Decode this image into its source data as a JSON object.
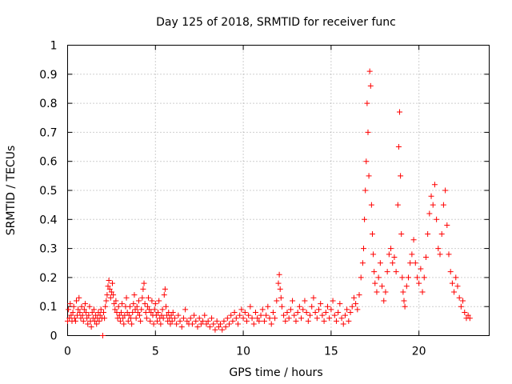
{
  "chart_data": {
    "type": "scatter",
    "title": "Day 125 of 2018, SRMTID for receiver func",
    "xlabel": "GPS time / hours",
    "ylabel": "SRMTID / TECUs",
    "xlim": [
      0,
      24
    ],
    "ylim": [
      0,
      1
    ],
    "xticks": [
      0,
      5,
      10,
      15,
      20
    ],
    "xtick_labels": [
      "0",
      "5",
      "10",
      "15",
      "20"
    ],
    "yticks": [
      0,
      0.1,
      0.2,
      0.3,
      0.4,
      0.5,
      0.6,
      0.7,
      0.8,
      0.9,
      1
    ],
    "ytick_labels": [
      "0",
      "0.1",
      "0.2",
      "0.3",
      "0.4",
      "0.5",
      "0.6",
      "0.7",
      "0.8",
      "0.9",
      "1"
    ],
    "grid": true,
    "marker": "plus",
    "color": "#ff0000",
    "series": [
      {
        "name": "SRMTID",
        "points": [
          [
            0.0,
            0.05
          ],
          [
            0.05,
            0.09
          ],
          [
            0.1,
            0.06
          ],
          [
            0.15,
            0.11
          ],
          [
            0.2,
            0.07
          ],
          [
            0.25,
            0.05
          ],
          [
            0.3,
            0.08
          ],
          [
            0.35,
            0.1
          ],
          [
            0.4,
            0.06
          ],
          [
            0.45,
            0.05
          ],
          [
            0.5,
            0.12
          ],
          [
            0.55,
            0.07
          ],
          [
            0.6,
            0.09
          ],
          [
            0.65,
            0.13
          ],
          [
            0.7,
            0.08
          ],
          [
            0.75,
            0.06
          ],
          [
            0.8,
            0.1
          ],
          [
            0.85,
            0.07
          ],
          [
            0.9,
            0.05
          ],
          [
            0.95,
            0.09
          ],
          [
            1.0,
            0.11
          ],
          [
            1.05,
            0.08
          ],
          [
            1.1,
            0.06
          ],
          [
            1.15,
            0.04
          ],
          [
            1.2,
            0.07
          ],
          [
            1.25,
            0.1
          ],
          [
            1.3,
            0.05
          ],
          [
            1.35,
            0.03
          ],
          [
            1.4,
            0.08
          ],
          [
            1.45,
            0.06
          ],
          [
            1.5,
            0.09
          ],
          [
            1.55,
            0.05
          ],
          [
            1.6,
            0.07
          ],
          [
            1.65,
            0.04
          ],
          [
            1.7,
            0.06
          ],
          [
            1.75,
            0.08
          ],
          [
            1.8,
            0.05
          ],
          [
            1.85,
            0.07
          ],
          [
            1.9,
            0.09
          ],
          [
            1.95,
            0.06
          ],
          [
            2.0,
            0.0
          ],
          [
            2.05,
            0.08
          ],
          [
            2.1,
            0.06
          ],
          [
            2.15,
            0.1
          ],
          [
            2.2,
            0.12
          ],
          [
            2.25,
            0.14
          ],
          [
            2.3,
            0.17
          ],
          [
            2.35,
            0.19
          ],
          [
            2.4,
            0.16
          ],
          [
            2.45,
            0.13
          ],
          [
            2.5,
            0.15
          ],
          [
            2.55,
            0.18
          ],
          [
            2.6,
            0.14
          ],
          [
            2.65,
            0.11
          ],
          [
            2.7,
            0.09
          ],
          [
            2.75,
            0.12
          ],
          [
            2.8,
            0.08
          ],
          [
            2.85,
            0.06
          ],
          [
            2.9,
            0.1
          ],
          [
            2.95,
            0.07
          ],
          [
            3.0,
            0.05
          ],
          [
            3.05,
            0.08
          ],
          [
            3.1,
            0.11
          ],
          [
            3.15,
            0.06
          ],
          [
            3.2,
            0.04
          ],
          [
            3.25,
            0.07
          ],
          [
            3.3,
            0.1
          ],
          [
            3.35,
            0.13
          ],
          [
            3.4,
            0.08
          ],
          [
            3.45,
            0.05
          ],
          [
            3.5,
            0.07
          ],
          [
            3.55,
            0.1
          ],
          [
            3.6,
            0.06
          ],
          [
            3.65,
            0.04
          ],
          [
            3.7,
            0.08
          ],
          [
            3.75,
            0.11
          ],
          [
            3.8,
            0.14
          ],
          [
            3.85,
            0.09
          ],
          [
            3.9,
            0.06
          ],
          [
            3.95,
            0.1
          ],
          [
            4.0,
            0.08
          ],
          [
            4.05,
            0.12
          ],
          [
            4.1,
            0.07
          ],
          [
            4.15,
            0.05
          ],
          [
            4.2,
            0.09
          ],
          [
            4.25,
            0.13
          ],
          [
            4.3,
            0.16
          ],
          [
            4.35,
            0.18
          ],
          [
            4.4,
            0.11
          ],
          [
            4.45,
            0.08
          ],
          [
            4.5,
            0.06
          ],
          [
            4.55,
            0.1
          ],
          [
            4.6,
            0.13
          ],
          [
            4.65,
            0.09
          ],
          [
            4.7,
            0.05
          ],
          [
            4.75,
            0.08
          ],
          [
            4.8,
            0.12
          ],
          [
            4.85,
            0.07
          ],
          [
            4.9,
            0.04
          ],
          [
            4.95,
            0.09
          ],
          [
            5.0,
            0.11
          ],
          [
            5.05,
            0.07
          ],
          [
            5.1,
            0.05
          ],
          [
            5.15,
            0.08
          ],
          [
            5.2,
            0.12
          ],
          [
            5.25,
            0.06
          ],
          [
            5.3,
            0.04
          ],
          [
            5.35,
            0.07
          ],
          [
            5.4,
            0.09
          ],
          [
            5.45,
            0.06
          ],
          [
            5.5,
            0.14
          ],
          [
            5.55,
            0.16
          ],
          [
            5.6,
            0.1
          ],
          [
            5.65,
            0.07
          ],
          [
            5.7,
            0.05
          ],
          [
            5.75,
            0.08
          ],
          [
            5.8,
            0.06
          ],
          [
            5.85,
            0.04
          ],
          [
            5.9,
            0.07
          ],
          [
            5.95,
            0.05
          ],
          [
            6.0,
            0.08
          ],
          [
            6.1,
            0.06
          ],
          [
            6.2,
            0.04
          ],
          [
            6.3,
            0.07
          ],
          [
            6.4,
            0.05
          ],
          [
            6.5,
            0.03
          ],
          [
            6.6,
            0.06
          ],
          [
            6.7,
            0.09
          ],
          [
            6.8,
            0.05
          ],
          [
            6.9,
            0.04
          ],
          [
            7.0,
            0.06
          ],
          [
            7.1,
            0.04
          ],
          [
            7.2,
            0.07
          ],
          [
            7.3,
            0.05
          ],
          [
            7.4,
            0.03
          ],
          [
            7.5,
            0.06
          ],
          [
            7.6,
            0.04
          ],
          [
            7.7,
            0.05
          ],
          [
            7.8,
            0.07
          ],
          [
            7.9,
            0.04
          ],
          [
            8.0,
            0.05
          ],
          [
            8.1,
            0.03
          ],
          [
            8.2,
            0.06
          ],
          [
            8.3,
            0.04
          ],
          [
            8.4,
            0.02
          ],
          [
            8.5,
            0.05
          ],
          [
            8.6,
            0.03
          ],
          [
            8.7,
            0.04
          ],
          [
            8.8,
            0.02
          ],
          [
            8.9,
            0.05
          ],
          [
            9.0,
            0.03
          ],
          [
            9.1,
            0.06
          ],
          [
            9.2,
            0.04
          ],
          [
            9.3,
            0.07
          ],
          [
            9.4,
            0.05
          ],
          [
            9.5,
            0.08
          ],
          [
            9.6,
            0.06
          ],
          [
            9.7,
            0.04
          ],
          [
            9.8,
            0.07
          ],
          [
            9.9,
            0.09
          ],
          [
            10.0,
            0.06
          ],
          [
            10.1,
            0.08
          ],
          [
            10.2,
            0.05
          ],
          [
            10.3,
            0.07
          ],
          [
            10.4,
            0.1
          ],
          [
            10.5,
            0.06
          ],
          [
            10.6,
            0.04
          ],
          [
            10.7,
            0.08
          ],
          [
            10.8,
            0.06
          ],
          [
            10.9,
            0.05
          ],
          [
            11.0,
            0.07
          ],
          [
            11.1,
            0.09
          ],
          [
            11.2,
            0.05
          ],
          [
            11.3,
            0.07
          ],
          [
            11.4,
            0.1
          ],
          [
            11.5,
            0.06
          ],
          [
            11.6,
            0.04
          ],
          [
            11.7,
            0.08
          ],
          [
            11.8,
            0.06
          ],
          [
            11.9,
            0.12
          ],
          [
            12.0,
            0.18
          ],
          [
            12.05,
            0.21
          ],
          [
            12.1,
            0.16
          ],
          [
            12.15,
            0.13
          ],
          [
            12.2,
            0.1
          ],
          [
            12.3,
            0.07
          ],
          [
            12.4,
            0.05
          ],
          [
            12.5,
            0.08
          ],
          [
            12.6,
            0.06
          ],
          [
            12.7,
            0.09
          ],
          [
            12.8,
            0.12
          ],
          [
            12.9,
            0.07
          ],
          [
            13.0,
            0.05
          ],
          [
            13.1,
            0.08
          ],
          [
            13.2,
            0.1
          ],
          [
            13.3,
            0.06
          ],
          [
            13.4,
            0.09
          ],
          [
            13.5,
            0.12
          ],
          [
            13.6,
            0.08
          ],
          [
            13.7,
            0.05
          ],
          [
            13.8,
            0.07
          ],
          [
            13.9,
            0.1
          ],
          [
            14.0,
            0.13
          ],
          [
            14.1,
            0.08
          ],
          [
            14.2,
            0.06
          ],
          [
            14.3,
            0.09
          ],
          [
            14.4,
            0.11
          ],
          [
            14.5,
            0.07
          ],
          [
            14.6,
            0.05
          ],
          [
            14.7,
            0.08
          ],
          [
            14.8,
            0.1
          ],
          [
            14.9,
            0.06
          ],
          [
            15.0,
            0.09
          ],
          [
            15.1,
            0.12
          ],
          [
            15.2,
            0.07
          ],
          [
            15.3,
            0.05
          ],
          [
            15.4,
            0.08
          ],
          [
            15.5,
            0.11
          ],
          [
            15.6,
            0.06
          ],
          [
            15.7,
            0.04
          ],
          [
            15.8,
            0.07
          ],
          [
            15.9,
            0.09
          ],
          [
            16.0,
            0.05
          ],
          [
            16.1,
            0.08
          ],
          [
            16.2,
            0.1
          ],
          [
            16.3,
            0.13
          ],
          [
            16.4,
            0.11
          ],
          [
            16.5,
            0.09
          ],
          [
            16.6,
            0.14
          ],
          [
            16.7,
            0.2
          ],
          [
            16.8,
            0.25
          ],
          [
            16.85,
            0.3
          ],
          [
            16.9,
            0.4
          ],
          [
            16.95,
            0.5
          ],
          [
            17.0,
            0.6
          ],
          [
            17.05,
            0.8
          ],
          [
            17.1,
            0.7
          ],
          [
            17.15,
            0.55
          ],
          [
            17.2,
            0.91
          ],
          [
            17.25,
            0.86
          ],
          [
            17.3,
            0.45
          ],
          [
            17.35,
            0.35
          ],
          [
            17.4,
            0.28
          ],
          [
            17.45,
            0.22
          ],
          [
            17.5,
            0.18
          ],
          [
            17.6,
            0.15
          ],
          [
            17.7,
            0.2
          ],
          [
            17.8,
            0.25
          ],
          [
            17.9,
            0.17
          ],
          [
            18.0,
            0.12
          ],
          [
            18.1,
            0.15
          ],
          [
            18.2,
            0.22
          ],
          [
            18.3,
            0.28
          ],
          [
            18.4,
            0.3
          ],
          [
            18.5,
            0.25
          ],
          [
            18.6,
            0.27
          ],
          [
            18.7,
            0.22
          ],
          [
            18.8,
            0.45
          ],
          [
            18.85,
            0.65
          ],
          [
            18.9,
            0.77
          ],
          [
            18.95,
            0.55
          ],
          [
            19.0,
            0.35
          ],
          [
            19.05,
            0.2
          ],
          [
            19.1,
            0.15
          ],
          [
            19.15,
            0.12
          ],
          [
            19.2,
            0.1
          ],
          [
            19.3,
            0.17
          ],
          [
            19.4,
            0.2
          ],
          [
            19.5,
            0.25
          ],
          [
            19.6,
            0.28
          ],
          [
            19.7,
            0.33
          ],
          [
            19.8,
            0.25
          ],
          [
            19.9,
            0.2
          ],
          [
            20.0,
            0.18
          ],
          [
            20.1,
            0.23
          ],
          [
            20.2,
            0.15
          ],
          [
            20.3,
            0.2
          ],
          [
            20.4,
            0.27
          ],
          [
            20.5,
            0.35
          ],
          [
            20.6,
            0.42
          ],
          [
            20.7,
            0.48
          ],
          [
            20.8,
            0.45
          ],
          [
            20.9,
            0.52
          ],
          [
            21.0,
            0.4
          ],
          [
            21.1,
            0.3
          ],
          [
            21.2,
            0.28
          ],
          [
            21.3,
            0.35
          ],
          [
            21.4,
            0.45
          ],
          [
            21.5,
            0.5
          ],
          [
            21.6,
            0.38
          ],
          [
            21.7,
            0.28
          ],
          [
            21.8,
            0.22
          ],
          [
            21.9,
            0.18
          ],
          [
            22.0,
            0.15
          ],
          [
            22.1,
            0.2
          ],
          [
            22.2,
            0.17
          ],
          [
            22.3,
            0.13
          ],
          [
            22.4,
            0.1
          ],
          [
            22.5,
            0.12
          ],
          [
            22.6,
            0.08
          ],
          [
            22.7,
            0.06
          ],
          [
            22.8,
            0.07
          ],
          [
            22.9,
            0.06
          ]
        ]
      }
    ]
  }
}
